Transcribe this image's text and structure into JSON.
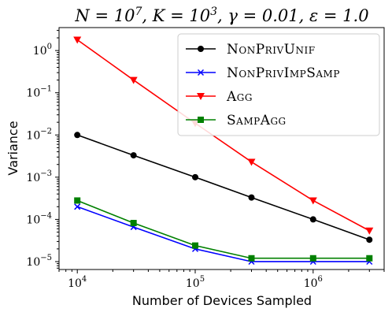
{
  "chart_data": {
    "type": "line",
    "title": "N = 10^7, K = 10^3, γ = 0.01, ε = 1.0",
    "xlabel": "Number of Devices Sampled",
    "ylabel": "Variance",
    "xscale": "log",
    "yscale": "log",
    "xlim": [
      7000,
      4000000
    ],
    "ylim": [
      6.5e-06,
      3.5
    ],
    "x_ticks": [
      10000,
      100000,
      1000000
    ],
    "y_ticks": [
      1e-05,
      0.0001,
      0.001,
      0.01,
      0.1,
      1
    ],
    "grid": false,
    "legend_position": "top-right",
    "x": [
      10000,
      30000,
      100000,
      300000,
      1000000,
      3000000
    ],
    "series": [
      {
        "name": "NonPrivUnif",
        "color": "#000000",
        "marker": "circle",
        "values": [
          0.01,
          0.0033,
          0.001,
          0.00033,
          0.0001,
          3.3e-05
        ]
      },
      {
        "name": "NonPrivImpSamp",
        "color": "#0000ff",
        "marker": "x",
        "values": [
          0.0002,
          6.6e-05,
          2e-05,
          1e-05,
          1e-05,
          1e-05
        ]
      },
      {
        "name": "Agg",
        "color": "#ff0000",
        "marker": "triangle-down",
        "values": [
          1.8,
          0.2,
          0.019,
          0.0023,
          0.00028,
          5.4e-05
        ]
      },
      {
        "name": "SampAgg",
        "color": "#008000",
        "marker": "square",
        "values": [
          0.00028,
          8.2e-05,
          2.4e-05,
          1.2e-05,
          1.2e-05,
          1.2e-05
        ]
      }
    ]
  }
}
